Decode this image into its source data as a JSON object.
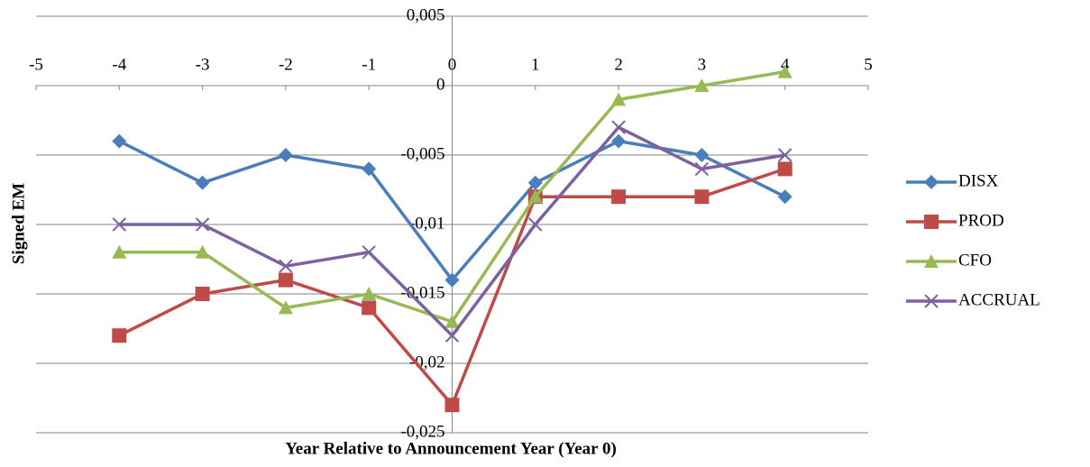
{
  "chart_data": {
    "type": "line",
    "x_label": "Year  Relative to Announcement Year (Year 0)",
    "y_label": "Signed EM",
    "x": [
      -4,
      -3,
      -2,
      -1,
      0,
      1,
      2,
      3,
      4
    ],
    "xlim": [
      -5,
      5
    ],
    "xticks": [
      -5,
      -4,
      -3,
      -2,
      -1,
      0,
      1,
      2,
      3,
      4,
      5
    ],
    "ylim": [
      -0.025,
      0.005
    ],
    "yticks": [
      {
        "value": -0.025,
        "label": "-0,025"
      },
      {
        "value": -0.02,
        "label": "-0,02"
      },
      {
        "value": -0.015,
        "label": "-0,015"
      },
      {
        "value": -0.01,
        "label": "-0,01"
      },
      {
        "value": -0.005,
        "label": "-0,005"
      },
      0,
      {
        "value": 0.005,
        "label": "0,005"
      }
    ],
    "grid": true,
    "legend": "right",
    "series": [
      {
        "name": "DISX",
        "color": "#4a7ebb",
        "marker": "diamond",
        "values": [
          -0.004,
          -0.007,
          -0.005,
          -0.006,
          -0.014,
          -0.007,
          -0.004,
          -0.005,
          -0.008
        ]
      },
      {
        "name": "PROD",
        "color": "#be4b48",
        "marker": "square",
        "values": [
          -0.018,
          -0.015,
          -0.014,
          -0.016,
          -0.023,
          -0.008,
          -0.008,
          -0.008,
          -0.006
        ]
      },
      {
        "name": "CFO",
        "color": "#98b954",
        "marker": "triangle",
        "values": [
          -0.012,
          -0.012,
          -0.016,
          -0.015,
          -0.017,
          -0.008,
          -0.001,
          0,
          0.001
        ]
      },
      {
        "name": "ACCRUAL",
        "color": "#7d60a0",
        "marker": "x",
        "values": [
          -0.01,
          -0.01,
          -0.013,
          -0.012,
          -0.018,
          -0.01,
          -0.003,
          -0.006,
          -0.005
        ]
      }
    ]
  }
}
